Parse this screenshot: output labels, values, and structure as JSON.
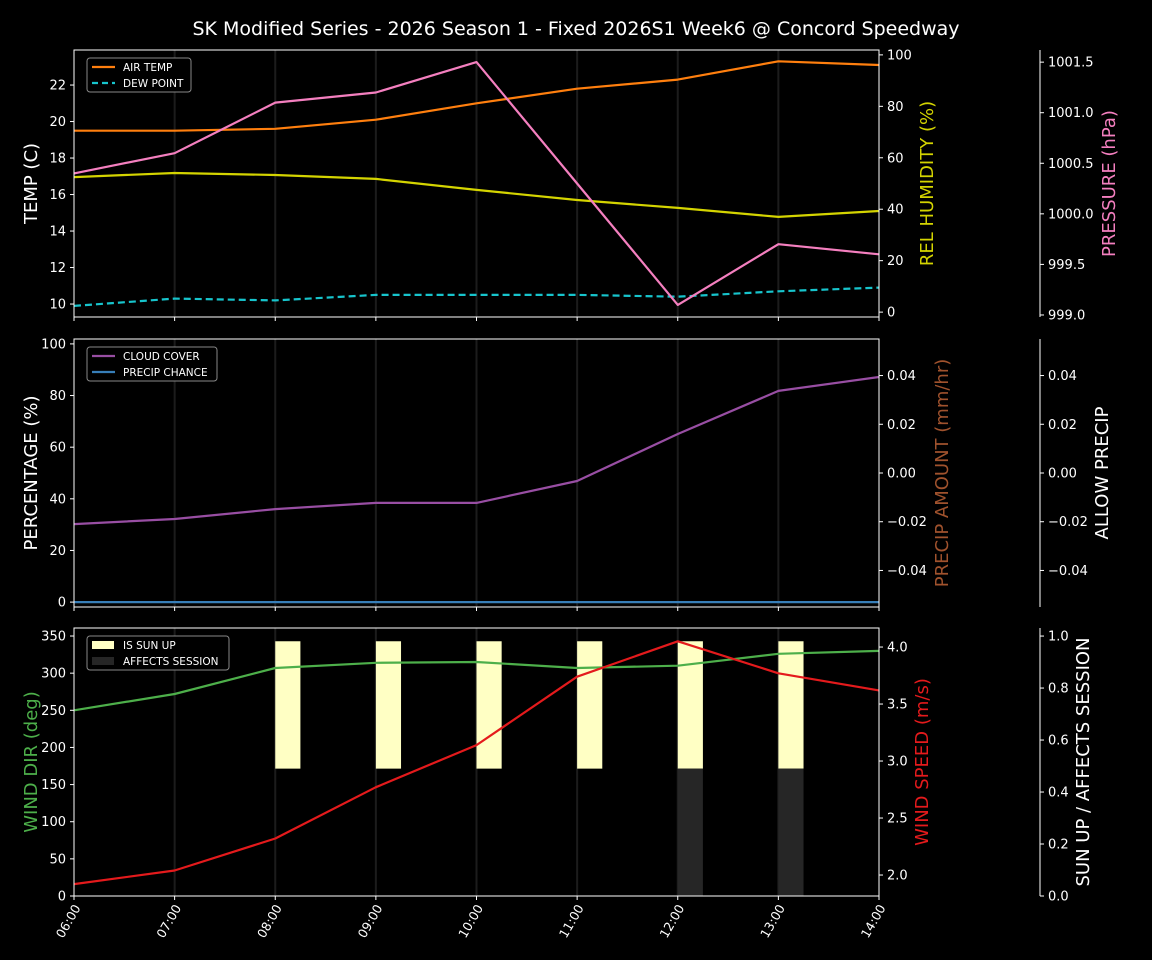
{
  "title": "SK Modified Series - 2026 Season 1 - Fixed 2026S1 Week6 @ Concord Speedway",
  "x_tick_labels": [
    "06:00",
    "07:00",
    "08:00",
    "09:00",
    "10:00",
    "11:00",
    "12:00",
    "13:00",
    "14:00"
  ],
  "chart_data": [
    {
      "type": "line",
      "x": [
        "06:00",
        "07:00",
        "08:00",
        "09:00",
        "10:00",
        "11:00",
        "12:00",
        "13:00",
        "14:00"
      ],
      "legend": "top-left",
      "grid": "vertical",
      "axes": {
        "left": {
          "label": "TEMP (C)",
          "color": "#ffffff",
          "ylim": [
            9.29,
            23.92
          ],
          "ticks": [
            "10",
            "12",
            "14",
            "16",
            "18",
            "20",
            "22"
          ]
        },
        "right1": {
          "label": "REL HUMIDITY (%)",
          "color": "#d4d400",
          "ylim": [
            -1.9,
            101.9
          ],
          "ticks": [
            "0",
            "20",
            "40",
            "60",
            "80",
            "100"
          ]
        },
        "right2": {
          "label": "PRESSURE (hPa)",
          "color": "#f47fbf",
          "ylim": [
            998.98,
            1001.62
          ],
          "ticks": [
            "999.0",
            "999.5",
            "1000.0",
            "1000.5",
            "1001.0",
            "1001.5"
          ]
        }
      },
      "series": [
        {
          "name": "AIR TEMP",
          "axis": "left",
          "color": "#ff7f0e",
          "dashed": false,
          "values": [
            19.5,
            19.5,
            19.6,
            20.1,
            21.0,
            21.8,
            22.3,
            23.3,
            23.1
          ]
        },
        {
          "name": "DEW POINT",
          "axis": "left",
          "color": "#17c4cc",
          "dashed": true,
          "values": [
            9.9,
            10.3,
            10.2,
            10.5,
            10.5,
            10.5,
            10.4,
            10.7,
            10.9
          ]
        },
        {
          "axis": "right1",
          "color": "#d4d400",
          "dashed": false,
          "values": [
            52.5,
            54.1,
            53.3,
            51.8,
            47.5,
            43.6,
            40.5,
            37.0,
            39.3
          ]
        },
        {
          "axis": "right2",
          "color": "#f47fbf",
          "dashed": false,
          "values": [
            1000.4,
            1000.6,
            1001.1,
            1001.2,
            1001.5,
            1000.3,
            999.1,
            999.7,
            999.6
          ]
        }
      ]
    },
    {
      "type": "line",
      "x": [
        "06:00",
        "07:00",
        "08:00",
        "09:00",
        "10:00",
        "11:00",
        "12:00",
        "13:00",
        "14:00"
      ],
      "legend": "top-left",
      "grid": "vertical",
      "axes": {
        "left": {
          "label": "PERCENTAGE (%)",
          "color": "#ffffff",
          "ylim": [
            -1.9,
            101.9
          ],
          "ticks": [
            "0",
            "20",
            "40",
            "60",
            "80",
            "100"
          ]
        },
        "right1": {
          "label": "PRECIP AMOUNT (mm/hr)",
          "color": "#a0522d",
          "ylim": [
            -0.055,
            0.055
          ],
          "ticks": [
            "−0.04",
            "−0.02",
            "0.00",
            "0.02",
            "0.04"
          ]
        },
        "right2": {
          "label": "ALLOW PRECIP",
          "color": "#ffffff",
          "ylim": [
            -0.055,
            0.055
          ],
          "ticks": [
            "−0.04",
            "−0.02",
            "0.00",
            "0.02",
            "0.04"
          ]
        }
      },
      "series": [
        {
          "name": "CLOUD COVER",
          "axis": "left",
          "color": "#984ea3",
          "dashed": false,
          "values": [
            30.2,
            32.2,
            36.0,
            38.4,
            38.4,
            46.9,
            65.1,
            81.8,
            87.2
          ]
        },
        {
          "name": "PRECIP CHANCE",
          "axis": "left",
          "color": "#377eb8",
          "dashed": false,
          "values": [
            0,
            0,
            0,
            0,
            0,
            0,
            0,
            0,
            0
          ]
        }
      ]
    },
    {
      "type": "line+bar",
      "x": [
        "06:00",
        "07:00",
        "08:00",
        "09:00",
        "10:00",
        "11:00",
        "12:00",
        "13:00",
        "14:00"
      ],
      "legend": "top-left",
      "grid": "vertical",
      "axes": {
        "left": {
          "label": "WIND DIR (deg)",
          "color": "#4daf4a",
          "ylim": [
            0,
            360.8
          ],
          "ticks": [
            "0",
            "50",
            "100",
            "150",
            "200",
            "250",
            "300",
            "350"
          ]
        },
        "right1": {
          "label": "WIND SPEED (m/s)",
          "color": "#e41a1c",
          "ylim": [
            1.816,
            4.167
          ],
          "ticks": [
            "2.0",
            "2.5",
            "3.0",
            "3.5",
            "4.0"
          ]
        },
        "right2": {
          "label": "SUN UP / AFFECTS SESSION",
          "color": "#ffffff",
          "ylim": [
            0,
            1.031
          ],
          "ticks": [
            "0.0",
            "0.2",
            "0.4",
            "0.6",
            "0.8",
            "1.0"
          ]
        }
      },
      "series": [
        {
          "axis": "left",
          "color": "#4daf4a",
          "dashed": false,
          "values": [
            250,
            272,
            307,
            314,
            315,
            307,
            310,
            326,
            330
          ]
        },
        {
          "axis": "right1",
          "color": "#e41a1c",
          "dashed": false,
          "values": [
            1.92,
            2.04,
            2.32,
            2.77,
            3.14,
            3.74,
            4.05,
            3.77,
            3.62
          ]
        }
      ],
      "bars": [
        {
          "name": "IS SUN UP",
          "color": "#ffffc4",
          "values": [
            0,
            0,
            1,
            1,
            1,
            1,
            1,
            1,
            0
          ]
        },
        {
          "name": "AFFECTS SESSION",
          "color": "#262626",
          "values": [
            0,
            0,
            0,
            0,
            0,
            0,
            1,
            1,
            0
          ]
        }
      ]
    }
  ]
}
